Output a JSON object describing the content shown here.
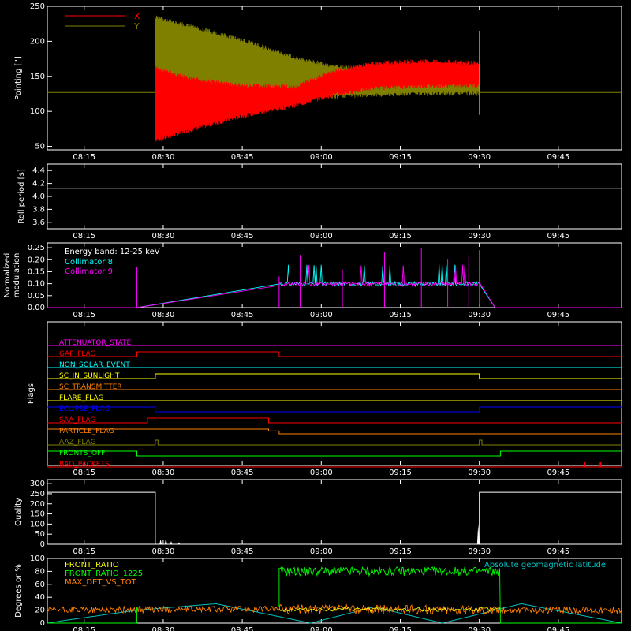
{
  "x_ticks": [
    "08:15",
    "08:30",
    "08:45",
    "09:00",
    "09:15",
    "09:30",
    "09:45"
  ],
  "x_tick_minutes": [
    15,
    30,
    45,
    60,
    75,
    90,
    105
  ],
  "x_range_minutes": [
    8,
    117
  ],
  "colors": {
    "axis": "#ffffff",
    "x": "#ff0000",
    "y": "#808000",
    "collimator8": "#00ffff",
    "collimator9": "#ff00ff",
    "front_ratio": "#ffff00",
    "front_ratio_1225": "#00ff00",
    "max_det": "#ff8000",
    "geomag": "#00c0c0"
  },
  "chart_data": [
    {
      "id": "pointing",
      "type": "line",
      "ylabel": "Pointing [\"]",
      "ylim": [
        45,
        250
      ],
      "yticks": [
        50,
        100,
        150,
        200,
        250
      ],
      "legend": {
        "placement": "top-left",
        "entries": [
          {
            "name": "X",
            "color": "#ff0000"
          },
          {
            "name": "Y",
            "color": "#808000"
          }
        ]
      },
      "baseline": 127,
      "data_window": [
        28.5,
        90
      ],
      "series": [
        {
          "name": "X",
          "x": [
            28.5,
            35,
            45,
            55,
            62,
            70,
            80,
            90
          ],
          "y_max": [
            165,
            150,
            140,
            138,
            160,
            172,
            175,
            172
          ],
          "y_min": [
            55,
            70,
            90,
            105,
            120,
            130,
            133,
            134
          ]
        },
        {
          "name": "Y",
          "x": [
            28.5,
            35,
            45,
            55,
            62,
            70,
            80,
            90
          ],
          "y_max": [
            238,
            225,
            205,
            180,
            168,
            162,
            160,
            160
          ],
          "y_min": [
            85,
            95,
            105,
            115,
            118,
            120,
            122,
            122
          ]
        }
      ]
    },
    {
      "id": "roll",
      "type": "line",
      "ylabel": "Roll period [s]",
      "ylim": [
        3.5,
        4.5
      ],
      "yticks": [
        3.6,
        3.8,
        4.0,
        4.2,
        4.4
      ],
      "series": [
        {
          "name": "roll",
          "x": [
            8,
            117
          ],
          "y": [
            4.12,
            4.12
          ]
        }
      ]
    },
    {
      "id": "modulation",
      "type": "line",
      "ylabel": "Normalized modulation",
      "ylim": [
        0,
        0.27
      ],
      "yticks": [
        0.0,
        0.05,
        0.1,
        0.15,
        0.2,
        0.25
      ],
      "legend": {
        "placement": "top-left",
        "title": "Energy band: 12-25 keV",
        "entries": [
          {
            "name": "Collimator 8",
            "color": "#00ffff"
          },
          {
            "name": "Collimator 9",
            "color": "#ff00ff"
          }
        ]
      },
      "series": [
        {
          "name": "Collimator 8",
          "x": [
            25,
            52,
            55,
            60,
            70,
            80,
            90,
            93
          ],
          "y": [
            0.0,
            0.1,
            0.1,
            0.1,
            0.1,
            0.1,
            0.1,
            0.0
          ]
        },
        {
          "name": "Collimator 9",
          "x": [
            25,
            52,
            55,
            60,
            70,
            80,
            90,
            93
          ],
          "y": [
            0.0,
            0.1,
            0.1,
            0.1,
            0.1,
            0.1,
            0.1,
            0.0
          ]
        }
      ],
      "spikes": [
        {
          "x": 25,
          "y": 0.17
        },
        {
          "x": 52,
          "y": 0.13
        },
        {
          "x": 56,
          "y": 0.22
        },
        {
          "x": 64,
          "y": 0.16
        },
        {
          "x": 72,
          "y": 0.23
        },
        {
          "x": 79,
          "y": 0.25
        },
        {
          "x": 84,
          "y": 0.2
        },
        {
          "x": 88,
          "y": 0.22
        },
        {
          "x": 90,
          "y": 0.24
        }
      ]
    },
    {
      "id": "flags",
      "type": "line",
      "ylabel": "Flags",
      "series": [
        {
          "name": "ATTENUATOR_STATE",
          "color": "#ff00ff",
          "x": [
            8,
            117
          ],
          "level": [
            0,
            0
          ]
        },
        {
          "name": "GAP_FLAG",
          "color": "#ff0000",
          "x": [
            8,
            25,
            25,
            52,
            52,
            117
          ],
          "level": [
            0,
            0,
            1,
            1,
            0,
            0
          ]
        },
        {
          "name": "NON_SOLAR_EVENT",
          "color": "#00ffff",
          "x": [
            8,
            117
          ],
          "level": [
            0,
            0
          ]
        },
        {
          "name": "SC_IN_SUNLIGHT",
          "color": "#ffff00",
          "x": [
            8,
            28.5,
            28.5,
            90,
            90,
            117
          ],
          "level": [
            0,
            0,
            1,
            1,
            0,
            0
          ]
        },
        {
          "name": "SC_TRANSMITTER",
          "color": "#ff8000",
          "x": [
            8,
            117
          ],
          "level": [
            0,
            0
          ]
        },
        {
          "name": "FLARE_FLAG",
          "color": "#ffff00",
          "x": [
            8,
            117
          ],
          "level": [
            0,
            0
          ]
        },
        {
          "name": "ECLIPSE_FLAG",
          "color": "#0000ff",
          "x": [
            8,
            28.5,
            28.5,
            90,
            90,
            117
          ],
          "level": [
            1,
            1,
            0,
            0,
            1,
            1
          ]
        },
        {
          "name": "SAA_FLAG",
          "color": "#ff0000",
          "x": [
            8,
            27,
            27,
            50,
            50,
            117
          ],
          "level": [
            0,
            0,
            1,
            1,
            0,
            0
          ]
        },
        {
          "name": "PARTICLE_FLAG",
          "color": "#ff8000",
          "x": [
            8,
            50,
            50,
            52,
            52,
            117
          ],
          "level": [
            1,
            1,
            0.6,
            0.6,
            0,
            0
          ]
        },
        {
          "name": "AAZ_FLAG",
          "color": "#808000",
          "x": [
            8,
            28.5,
            28.5,
            29,
            29,
            90,
            90,
            90.5,
            90.5,
            117
          ],
          "level": [
            0,
            0,
            1,
            1,
            0,
            0,
            1,
            1,
            0,
            0
          ]
        },
        {
          "name": "FRONTS_OFF",
          "color": "#00ff00",
          "x": [
            8,
            25,
            25,
            94,
            94,
            117
          ],
          "level": [
            1,
            1,
            0,
            0,
            1,
            1
          ]
        },
        {
          "name": "BAD_PACKETS",
          "color": "#ff0000",
          "x": [
            8,
            117
          ],
          "level": [
            0,
            0
          ]
        }
      ],
      "bad_packet_spikes": [
        110,
        113
      ]
    },
    {
      "id": "quality",
      "type": "line",
      "ylabel": "Quality",
      "ylim": [
        0,
        320
      ],
      "yticks": [
        0,
        50,
        100,
        150,
        200,
        250,
        300
      ],
      "series": [
        {
          "name": "quality",
          "x": [
            8,
            28.5,
            28.5,
            90,
            90,
            117
          ],
          "y": [
            257,
            257,
            0,
            0,
            257,
            257
          ]
        }
      ],
      "spikes": [
        {
          "x": 29.5,
          "y": 25
        },
        {
          "x": 30.5,
          "y": 30
        },
        {
          "x": 31.5,
          "y": 15
        },
        {
          "x": 33,
          "y": 10
        },
        {
          "x": 89.8,
          "y": 100
        }
      ]
    },
    {
      "id": "ratios",
      "type": "line",
      "ylabel": "Degrees or %",
      "ylim": [
        0,
        100
      ],
      "yticks": [
        0,
        20,
        40,
        60,
        80,
        100
      ],
      "legend": {
        "placement": "top-left",
        "entries": [
          {
            "name": "FRONT_RATIO",
            "color": "#ffff00"
          },
          {
            "name": "FRONT_RATIO_1225",
            "color": "#00ff00"
          },
          {
            "name": "MAX_DET_VS_TOT",
            "color": "#ff8000"
          }
        ]
      },
      "right_label": {
        "text": "Absolute geomagnetic latitude",
        "color": "#00c0c0"
      },
      "series": [
        {
          "name": "FRONT_RATIO_1225",
          "x": [
            8,
            25,
            25,
            52,
            52,
            94,
            94,
            117
          ],
          "y": [
            0,
            0,
            25,
            25,
            80,
            80,
            0,
            0
          ]
        },
        {
          "name": "MAX_DET_VS_TOT",
          "x": [
            8,
            52,
            94,
            117
          ],
          "y": [
            20,
            22,
            20,
            20
          ]
        },
        {
          "name": "Absolute geomagnetic latitude",
          "x": [
            8,
            12,
            25,
            40,
            58,
            70,
            83,
            98,
            117
          ],
          "y": [
            0,
            5,
            20,
            30,
            0,
            25,
            0,
            30,
            0
          ]
        }
      ]
    }
  ]
}
